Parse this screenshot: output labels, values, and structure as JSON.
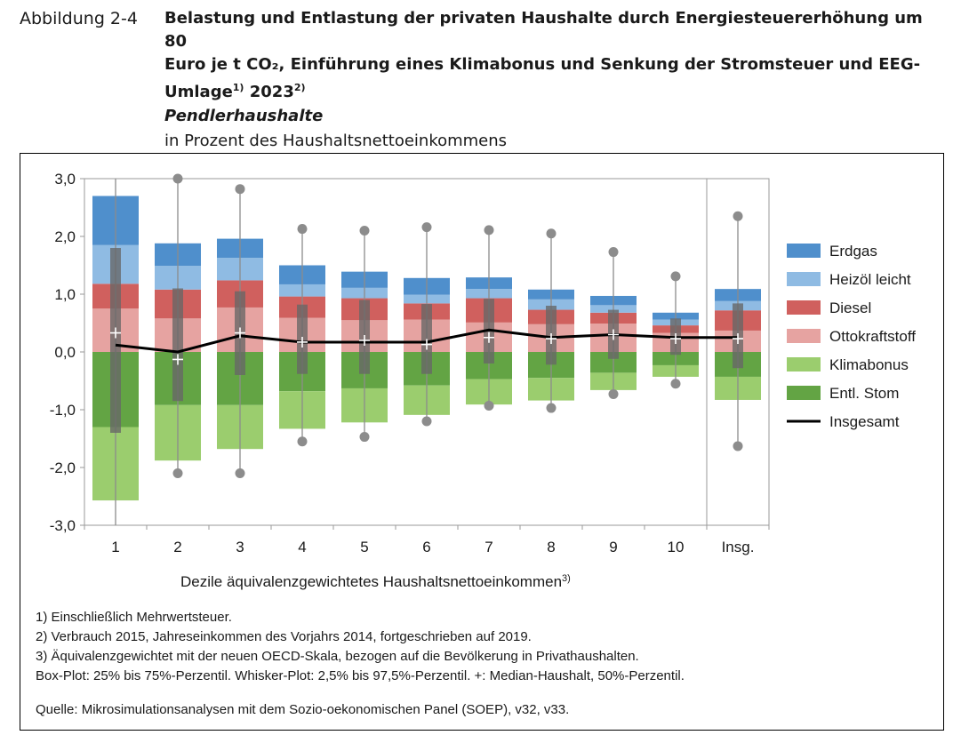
{
  "figure_label": "Abbildung 2-4",
  "title_line1": "Belastung und Entlastung der privaten Haushalte durch Energiesteuererhöhung um 80",
  "title_line2": "Euro je t CO₂, Einführung eines Klimabonus und Senkung der Stromsteuer und EEG-",
  "title_line3": "Umlage",
  "title_fn1": "1)",
  "title_year": "2023",
  "title_fn2": "2)",
  "subtitle": "Pendlerhaushalte",
  "unit_text": "in Prozent des Haushaltsnettoeinkommens",
  "xlabel": "Dezile äquivalenzgewichtetes Haushaltsnettoeinkommen",
  "xlabel_fn": "3)",
  "footnotes": [
    "1) Einschließlich Mehrwertsteuer.",
    "2) Verbrauch 2015, Jahreseinkommen des Vorjahrs 2014, fortgeschrieben auf 2019.",
    "3) Äquivalenzgewichtet mit der neuen OECD-Skala, bezogen auf die Bevölkerung in Privathaushalten.",
    "Box-Plot: 25% bis 75%-Perzentil. Whisker-Plot: 2,5% bis 97,5%-Perzentil. +: Median-Haushalt, 50%-Perzentil."
  ],
  "source": "Quelle: Mikrosimulationsanalysen mit dem Sozio-oekonomischen Panel (SOEP), v32, v33.",
  "chart_data": {
    "type": "bar",
    "stacked": true,
    "categories": [
      "1",
      "2",
      "3",
      "4",
      "5",
      "6",
      "7",
      "8",
      "9",
      "10",
      "Insg."
    ],
    "ylim": [
      -3.0,
      3.0
    ],
    "yticks": [
      "3,0",
      "2,0",
      "1,0",
      "0,0",
      "-1,0",
      "-2,0",
      "-3,0"
    ],
    "grid": false,
    "legend_position": "right",
    "series": [
      {
        "name": "Ottokraftstoff",
        "color": "#e6a3a1",
        "values": [
          0.75,
          0.58,
          0.77,
          0.59,
          0.55,
          0.56,
          0.51,
          0.48,
          0.49,
          0.33,
          0.37
        ]
      },
      {
        "name": "Diesel",
        "color": "#d0605e",
        "values": [
          0.43,
          0.5,
          0.47,
          0.37,
          0.38,
          0.28,
          0.42,
          0.25,
          0.19,
          0.13,
          0.35
        ]
      },
      {
        "name": "Heizöl leicht",
        "color": "#8fbbe3",
        "values": [
          0.67,
          0.41,
          0.39,
          0.21,
          0.18,
          0.15,
          0.16,
          0.18,
          0.13,
          0.1,
          0.16
        ]
      },
      {
        "name": "Erdgas",
        "color": "#4f8fcc",
        "values": [
          0.85,
          0.39,
          0.33,
          0.33,
          0.28,
          0.29,
          0.2,
          0.17,
          0.16,
          0.12,
          0.21
        ]
      },
      {
        "name": "Entl. Stom",
        "color": "#63a444",
        "values": [
          -1.3,
          -0.92,
          -0.92,
          -0.68,
          -0.63,
          -0.58,
          -0.47,
          -0.45,
          -0.36,
          -0.23,
          -0.43
        ]
      },
      {
        "name": "Klimabonus",
        "color": "#9bcd6e",
        "values": [
          -1.27,
          -0.96,
          -0.76,
          -0.65,
          -0.59,
          -0.51,
          -0.44,
          -0.39,
          -0.3,
          -0.2,
          -0.4
        ]
      }
    ],
    "line_series": {
      "name": "Insgesamt",
      "color": "#000000",
      "values": [
        0.12,
        0.0,
        0.28,
        0.17,
        0.17,
        0.17,
        0.38,
        0.25,
        0.3,
        0.25,
        0.25
      ]
    },
    "boxplot": {
      "box_low": [
        -1.4,
        -0.85,
        -0.4,
        -0.38,
        -0.38,
        -0.38,
        -0.2,
        -0.22,
        -0.12,
        -0.05,
        -0.28
      ],
      "box_high": [
        1.8,
        1.1,
        1.05,
        0.82,
        0.9,
        0.83,
        0.92,
        0.8,
        0.73,
        0.58,
        0.84
      ],
      "whisker_low": [
        -3.0,
        -2.1,
        -2.1,
        -1.55,
        -1.47,
        -1.2,
        -0.93,
        -0.97,
        -0.73,
        -0.55,
        -1.63
      ],
      "whisker_high": [
        3.0,
        3.0,
        2.82,
        2.13,
        2.1,
        2.16,
        2.11,
        2.05,
        1.73,
        1.31,
        2.35
      ],
      "whisker_dots": [
        false,
        true,
        true,
        true,
        true,
        true,
        true,
        true,
        true,
        true,
        true
      ],
      "median": [
        0.33,
        -0.13,
        0.33,
        0.17,
        0.2,
        0.13,
        0.25,
        0.23,
        0.3,
        0.23,
        0.23
      ]
    },
    "legend_order": [
      "Erdgas",
      "Heizöl leicht",
      "Diesel",
      "Ottokraftstoff",
      "Klimabonus",
      "Entl. Stom",
      "Insgesamt"
    ]
  }
}
